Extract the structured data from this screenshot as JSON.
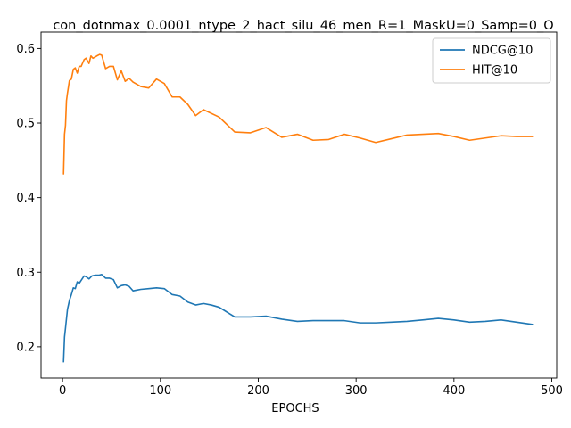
{
  "chart_data": {
    "type": "line",
    "title": "con_dotnmax_0.0001_ntype_2_hact_silu_46_men_R=1_MaskU=0_Samp=0_O",
    "xlabel": "EPOCHS",
    "ylabel": "",
    "xlim": [
      -22,
      505
    ],
    "ylim": [
      0.158,
      0.622
    ],
    "xticks": [
      0,
      100,
      200,
      300,
      400,
      500
    ],
    "yticks": [
      0.2,
      0.3,
      0.4,
      0.5,
      0.6
    ],
    "xtick_labels": [
      "0",
      "100",
      "200",
      "300",
      "400",
      "500"
    ],
    "ytick_labels": [
      "0.2",
      "0.3",
      "0.4",
      "0.5",
      "0.6"
    ],
    "grid": false,
    "legend_position": "top-right",
    "series": [
      {
        "name": "NDCG@10",
        "color": "#1f77b4",
        "x": [
          1,
          2,
          3,
          5,
          7,
          9,
          11,
          13,
          15,
          17,
          19,
          22,
          24,
          27,
          30,
          33,
          37,
          40,
          44,
          48,
          52,
          56,
          60,
          64,
          68,
          72,
          76,
          80,
          88,
          96,
          104,
          112,
          120,
          128,
          136,
          144,
          152,
          160,
          176,
          192,
          208,
          224,
          240,
          256,
          272,
          288,
          304,
          320,
          336,
          352,
          368,
          384,
          400,
          416,
          432,
          448,
          464,
          480
        ],
        "y": [
          0.18,
          0.213,
          0.225,
          0.25,
          0.262,
          0.27,
          0.279,
          0.278,
          0.287,
          0.285,
          0.289,
          0.295,
          0.294,
          0.291,
          0.295,
          0.296,
          0.296,
          0.297,
          0.292,
          0.292,
          0.29,
          0.279,
          0.282,
          0.283,
          0.281,
          0.275,
          0.276,
          0.277,
          0.278,
          0.279,
          0.278,
          0.27,
          0.268,
          0.26,
          0.256,
          0.258,
          0.256,
          0.253,
          0.24,
          0.24,
          0.241,
          0.237,
          0.234,
          0.235,
          0.235,
          0.235,
          0.232,
          0.232,
          0.233,
          0.234,
          0.236,
          0.238,
          0.236,
          0.233,
          0.234,
          0.236,
          0.233,
          0.23
        ]
      },
      {
        "name": "HIT@10",
        "color": "#ff7f0e",
        "x": [
          1,
          2,
          3,
          4,
          5,
          7,
          9,
          11,
          13,
          15,
          17,
          19,
          22,
          24,
          27,
          29,
          31,
          35,
          38,
          40,
          44,
          48,
          52,
          56,
          60,
          64,
          68,
          72,
          80,
          88,
          96,
          104,
          112,
          120,
          128,
          136,
          144,
          160,
          176,
          192,
          208,
          224,
          240,
          256,
          272,
          288,
          304,
          320,
          336,
          352,
          368,
          384,
          400,
          416,
          432,
          448,
          464,
          480
        ],
        "y": [
          0.432,
          0.485,
          0.497,
          0.53,
          0.54,
          0.557,
          0.559,
          0.572,
          0.574,
          0.567,
          0.576,
          0.576,
          0.585,
          0.587,
          0.58,
          0.59,
          0.587,
          0.59,
          0.592,
          0.591,
          0.573,
          0.576,
          0.576,
          0.558,
          0.57,
          0.556,
          0.56,
          0.555,
          0.549,
          0.547,
          0.559,
          0.553,
          0.535,
          0.535,
          0.525,
          0.51,
          0.518,
          0.508,
          0.488,
          0.487,
          0.494,
          0.481,
          0.485,
          0.477,
          0.478,
          0.485,
          0.48,
          0.474,
          0.479,
          0.484,
          0.485,
          0.486,
          0.482,
          0.477,
          0.48,
          0.483,
          0.482,
          0.482
        ]
      }
    ]
  }
}
